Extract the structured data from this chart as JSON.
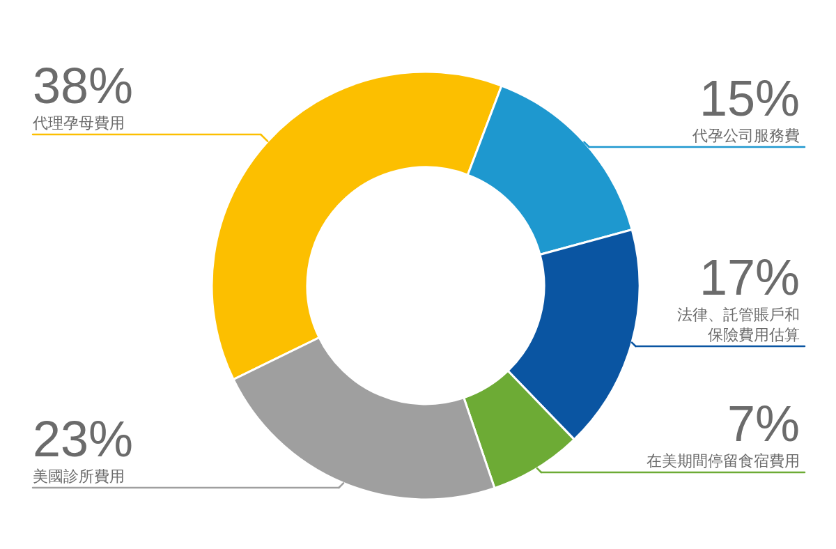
{
  "chart_data": {
    "type": "donut",
    "categories": [
      "代理孕母費用",
      "代孕公司服務費",
      "法律、託管賬戶和保險費用估算",
      "在美期間停留食宿費用",
      "美國診所費用"
    ],
    "values": [
      38,
      15,
      17,
      7,
      23
    ],
    "colors": [
      "#fcbf00",
      "#1e98cf",
      "#0a55a2",
      "#6dab35",
      "#9f9f9f"
    ],
    "value_labels": [
      "38%",
      "15%",
      "17%",
      "7%",
      "23%"
    ]
  }
}
